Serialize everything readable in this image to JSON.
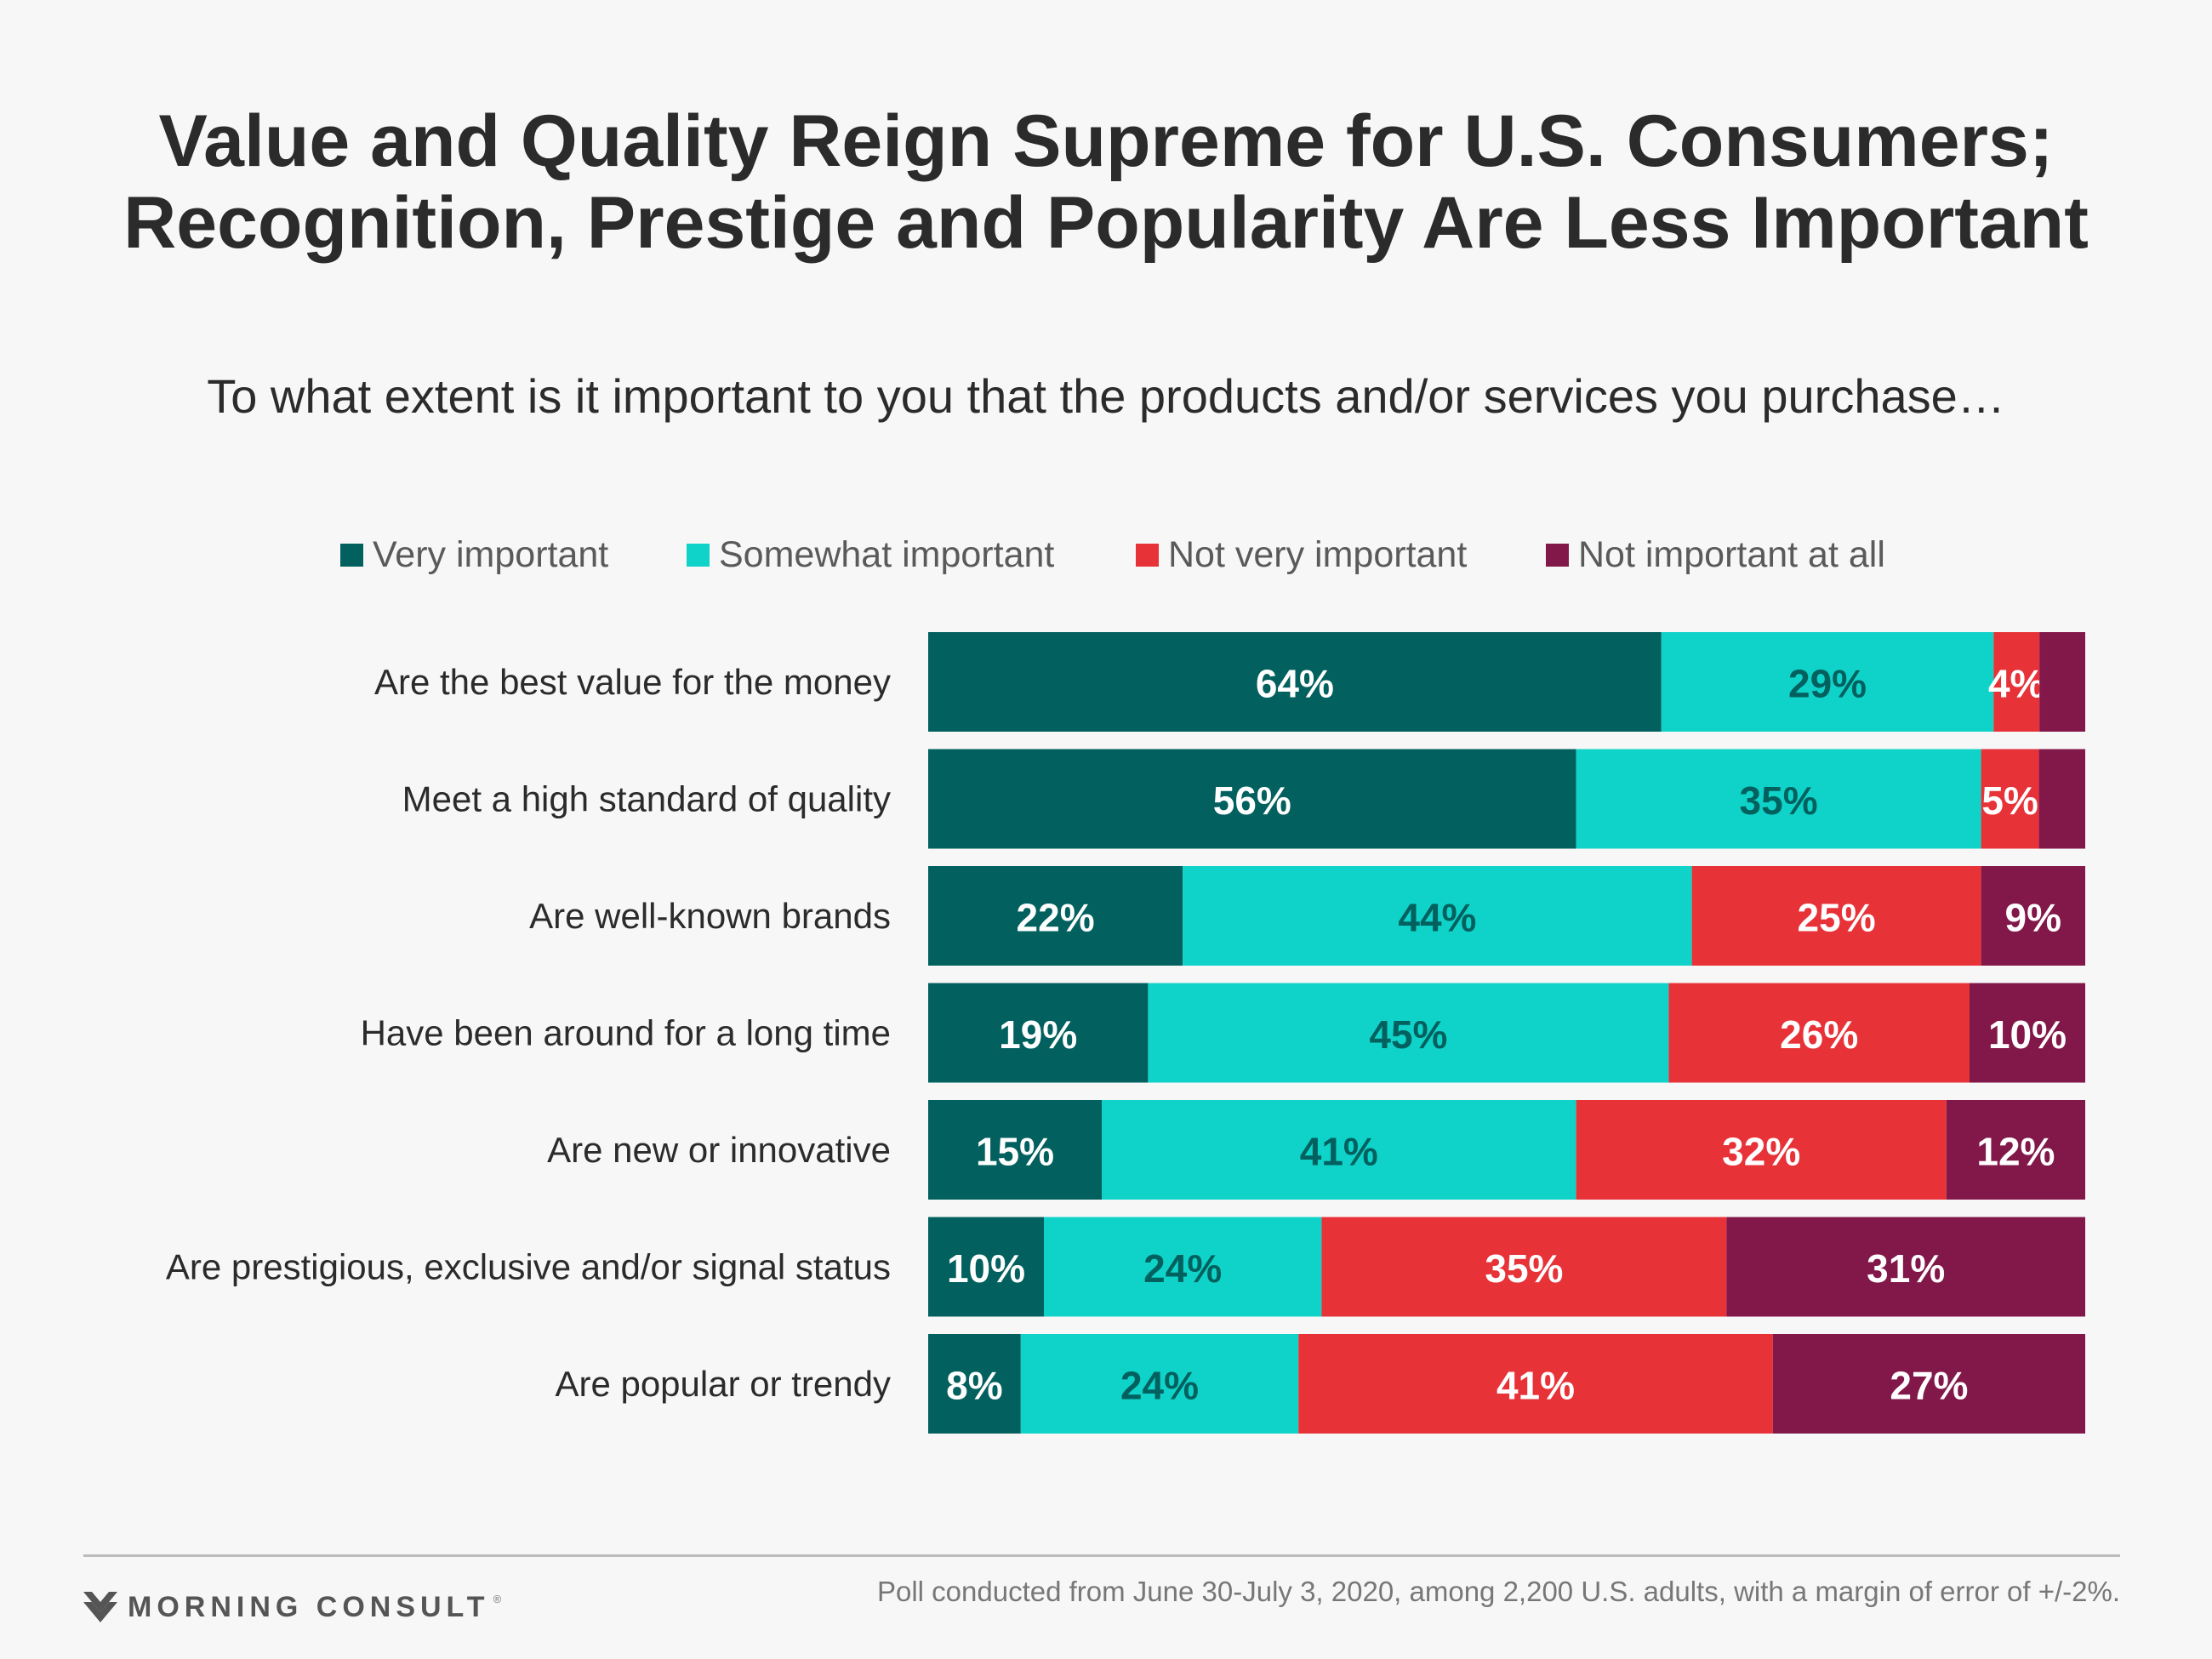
{
  "header": {
    "title_line1": "Value and Quality Reign Supreme for U.S. Consumers;",
    "title_line2": "Recognition, Prestige and Popularity Are Less Important",
    "subtitle": "To what extent is it important to you that the products and/or services you purchase…"
  },
  "colors": {
    "very_important": "#02605e",
    "somewhat_important": "#0fd3c9",
    "not_very_important": "#e73238",
    "not_important_at_all": "#82174a"
  },
  "chart_data": {
    "type": "bar",
    "orientation": "horizontal",
    "stacked": true,
    "normalized": true,
    "categories": [
      "Are the best value for the money",
      "Meet a high standard of quality",
      "Are well-known brands",
      "Have been around for a long time",
      "Are new or innovative",
      "Are prestigious, exclusive and/or signal status",
      "Are popular or trendy"
    ],
    "series": [
      {
        "name": "Very important",
        "color": "#02605e",
        "values": [
          64,
          56,
          22,
          19,
          15,
          10,
          8
        ]
      },
      {
        "name": "Somewhat important",
        "color": "#0fd3c9",
        "values": [
          29,
          35,
          44,
          45,
          41,
          24,
          24
        ]
      },
      {
        "name": "Not very important",
        "color": "#e73238",
        "values": [
          4,
          5,
          25,
          26,
          32,
          35,
          41
        ]
      },
      {
        "name": "Not important at all",
        "color": "#82174a",
        "values": [
          4,
          4,
          9,
          10,
          12,
          31,
          27
        ]
      }
    ],
    "data_labels": [
      [
        "64%",
        "29%",
        "4%",
        ""
      ],
      [
        "56%",
        "35%",
        "5%",
        ""
      ],
      [
        "22%",
        "44%",
        "25%",
        "9%"
      ],
      [
        "19%",
        "45%",
        "26%",
        "10%"
      ],
      [
        "15%",
        "41%",
        "32%",
        "12%"
      ],
      [
        "10%",
        "24%",
        "35%",
        "31%"
      ],
      [
        "8%",
        "24%",
        "41%",
        "27%"
      ]
    ],
    "label_colors": [
      [
        "#ffffff",
        "#02605e",
        "#ffffff",
        ""
      ],
      [
        "#ffffff",
        "#02605e",
        "#ffffff",
        ""
      ],
      [
        "#ffffff",
        "#02605e",
        "#ffffff",
        "#ffffff"
      ],
      [
        "#ffffff",
        "#02605e",
        "#ffffff",
        "#ffffff"
      ],
      [
        "#ffffff",
        "#02605e",
        "#ffffff",
        "#ffffff"
      ],
      [
        "#ffffff",
        "#02605e",
        "#ffffff",
        "#ffffff"
      ],
      [
        "#ffffff",
        "#02605e",
        "#ffffff",
        "#ffffff"
      ]
    ],
    "legend_position": "top",
    "grid": false
  },
  "footer": {
    "logo_text": "MORNING CONSULT",
    "logo_mark": "®",
    "note": "Poll conducted from June 30-July 3, 2020, among 2,200 U.S. adults, with a margin of error of +/-2%."
  }
}
